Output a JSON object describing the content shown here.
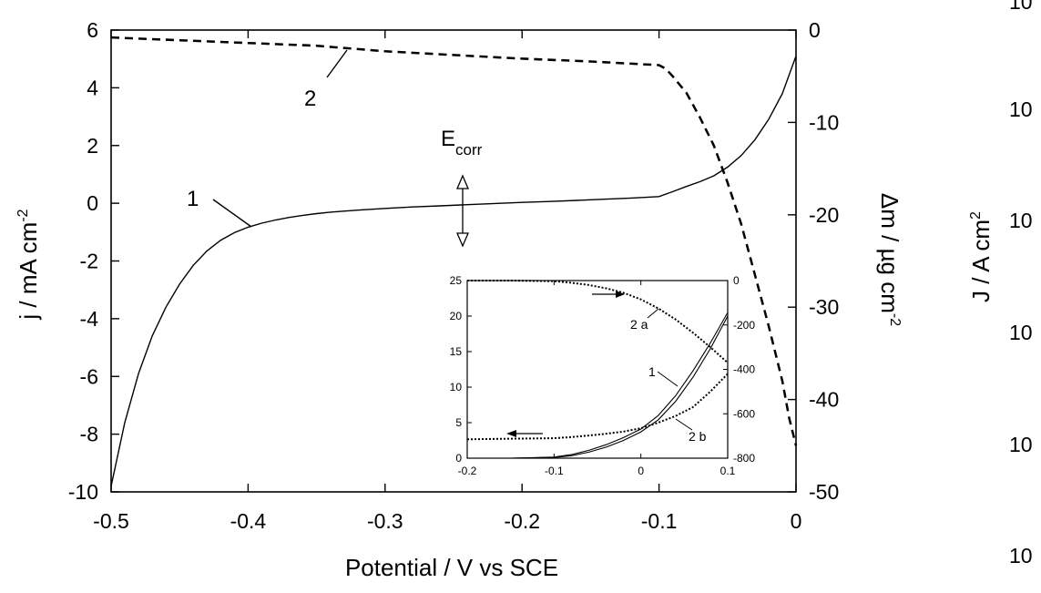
{
  "chart_data": [
    {
      "type": "line",
      "xlabel": "Potential / V vs SCE",
      "ylabel_left": "j /  mA cm",
      "ylabel_left_sup": "-2",
      "ylabel_right": "Δm / µg cm",
      "ylabel_right_sup": "-2",
      "xlim": [
        -0.5,
        0
      ],
      "ylim_left": [
        -10,
        6
      ],
      "ylim_right": [
        -50,
        0
      ],
      "x_ticks": [
        -0.5,
        -0.4,
        -0.3,
        -0.2,
        -0.1,
        0
      ],
      "x_tick_labels": [
        "-0.5",
        "-0.4",
        "-0.3",
        "-0.2",
        "-0.1",
        "0"
      ],
      "y_left_ticks": [
        -10,
        -8,
        -6,
        -4,
        -2,
        0,
        2,
        4,
        6
      ],
      "y_left_tick_labels": [
        "-10",
        "-8",
        "-6",
        "-4",
        "-2",
        "0",
        "2",
        "4",
        "6"
      ],
      "y_right_ticks": [
        -50,
        -40,
        -30,
        -20,
        -10,
        0
      ],
      "y_right_tick_labels": [
        "-50",
        "-40",
        "-30",
        "-20",
        "-10",
        "0"
      ],
      "annotation": {
        "text": "E",
        "subscript": "corr",
        "x": -0.245
      },
      "series": [
        {
          "name": "1",
          "axis": "left",
          "style": "solid",
          "x": [
            -0.5,
            -0.49,
            -0.48,
            -0.47,
            -0.46,
            -0.45,
            -0.44,
            -0.43,
            -0.42,
            -0.41,
            -0.4,
            -0.39,
            -0.38,
            -0.37,
            -0.36,
            -0.35,
            -0.34,
            -0.32,
            -0.3,
            -0.28,
            -0.26,
            -0.24,
            -0.22,
            -0.2,
            -0.18,
            -0.16,
            -0.14,
            -0.12,
            -0.1,
            -0.09,
            -0.08,
            -0.07,
            -0.06,
            -0.05,
            -0.04,
            -0.03,
            -0.02,
            -0.01,
            0
          ],
          "y": [
            -9.8,
            -7.6,
            -5.9,
            -4.6,
            -3.6,
            -2.8,
            -2.15,
            -1.65,
            -1.28,
            -1.02,
            -0.83,
            -0.69,
            -0.58,
            -0.49,
            -0.42,
            -0.36,
            -0.31,
            -0.24,
            -0.18,
            -0.13,
            -0.09,
            -0.05,
            -0.01,
            0.03,
            0.06,
            0.1,
            0.14,
            0.18,
            0.23,
            0.4,
            0.58,
            0.75,
            0.95,
            1.25,
            1.65,
            2.2,
            2.9,
            3.8,
            5.1
          ]
        },
        {
          "name": "2",
          "axis": "right",
          "style": "dashed",
          "x": [
            -0.5,
            -0.45,
            -0.4,
            -0.35,
            -0.3,
            -0.25,
            -0.2,
            -0.15,
            -0.1,
            -0.095,
            -0.09,
            -0.08,
            -0.07,
            -0.06,
            -0.05,
            -0.04,
            -0.03,
            -0.02,
            -0.01,
            -0.005,
            0
          ],
          "y": [
            -0.8,
            -1.1,
            -1.4,
            -1.7,
            -2.3,
            -2.7,
            -3.1,
            -3.4,
            -3.8,
            -4.2,
            -5.0,
            -6.8,
            -9.5,
            -12.5,
            -16.5,
            -21.0,
            -26.5,
            -32.0,
            -38.0,
            -42.0,
            -45.0
          ]
        }
      ]
    },
    {
      "type": "line",
      "inset": true,
      "xlim": [
        -0.2,
        0.1
      ],
      "ylim_left": [
        0,
        25
      ],
      "ylim_right": [
        -800,
        0
      ],
      "x_ticks": [
        -0.2,
        -0.1,
        0,
        0.1
      ],
      "x_tick_labels": [
        "-0.2",
        "-0.1",
        "0",
        "0.1"
      ],
      "y_left_ticks": [
        0,
        5,
        10,
        15,
        20,
        25
      ],
      "y_left_tick_labels": [
        "0",
        "5",
        "10",
        "15",
        "20",
        "25"
      ],
      "y_right_ticks": [
        -800,
        -600,
        -400,
        -200,
        0
      ],
      "y_right_tick_labels": [
        "-800",
        "-600",
        "-400",
        "-200",
        "0"
      ],
      "series": [
        {
          "name": "1",
          "axis": "left",
          "style": "solid",
          "x": [
            -0.2,
            -0.15,
            -0.1,
            -0.08,
            -0.06,
            -0.04,
            -0.02,
            0,
            0.02,
            0.04,
            0.06,
            0.08,
            0.1
          ],
          "y": [
            0,
            0,
            0.15,
            0.5,
            1.1,
            1.9,
            2.9,
            4.1,
            6.0,
            8.8,
            12.3,
            16.2,
            20.5
          ]
        },
        {
          "name": "1",
          "axis": "left",
          "style": "solid",
          "x": [
            -0.2,
            -0.15,
            -0.1,
            -0.08,
            -0.06,
            -0.04,
            -0.02,
            0,
            0.02,
            0.04,
            0.06,
            0.08,
            0.1
          ],
          "y": [
            0,
            0,
            0.1,
            0.35,
            0.85,
            1.55,
            2.5,
            3.7,
            5.4,
            8.0,
            11.4,
            15.4,
            20.0
          ]
        },
        {
          "name": "2 a",
          "axis": "right",
          "style": "dotted",
          "x": [
            -0.2,
            -0.15,
            -0.1,
            -0.08,
            -0.06,
            -0.04,
            -0.02,
            0,
            0.02,
            0.04,
            0.06,
            0.08,
            0.1
          ],
          "y": [
            0,
            0,
            -3,
            -10,
            -20,
            -35,
            -55,
            -85,
            -125,
            -175,
            -235,
            -300,
            -370
          ]
        },
        {
          "name": "2 b",
          "axis": "right",
          "style": "dotted",
          "x": [
            -0.2,
            -0.15,
            -0.1,
            -0.08,
            -0.06,
            -0.04,
            -0.02,
            0,
            0.02,
            0.04,
            0.06,
            0.08,
            0.1
          ],
          "y": [
            -715,
            -712,
            -710,
            -705,
            -698,
            -690,
            -680,
            -665,
            -640,
            -610,
            -570,
            -500,
            -420
          ]
        }
      ]
    }
  ],
  "labels": {
    "curve1": "1",
    "curve2": "2",
    "inset_1": "1",
    "inset_2a": "2 a",
    "inset_2b": "2 b",
    "second_y_title": "J / A cm",
    "second_y_sup": "2",
    "second_y_ticks": [
      "10",
      "10",
      "10",
      "10",
      "10",
      "10"
    ]
  }
}
